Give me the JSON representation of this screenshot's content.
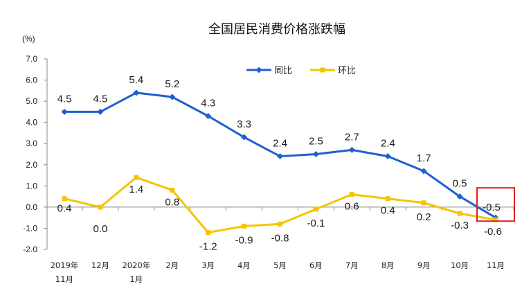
{
  "chart_data": {
    "type": "line",
    "title": "全国居民消费价格涨跌幅",
    "unit": "(%)",
    "ylim": [
      -2.0,
      7.0
    ],
    "yticks": [
      "7.0",
      "6.0",
      "5.0",
      "4.0",
      "3.0",
      "2.0",
      "1.0",
      "0.0",
      "-1.0",
      "-2.0"
    ],
    "categories": [
      [
        "2019年",
        "11月"
      ],
      [
        "12月"
      ],
      [
        "2020年",
        "1月"
      ],
      [
        "2月"
      ],
      [
        "3月"
      ],
      [
        "4月"
      ],
      [
        "5月"
      ],
      [
        "6月"
      ],
      [
        "7月"
      ],
      [
        "8月"
      ],
      [
        "9月"
      ],
      [
        "10月"
      ],
      [
        "11月"
      ]
    ],
    "series": [
      {
        "name": "同比",
        "color": "#1f5fd0",
        "values": [
          4.5,
          4.5,
          5.4,
          5.2,
          4.3,
          3.3,
          2.4,
          2.5,
          2.7,
          2.4,
          1.7,
          0.5,
          -0.5
        ],
        "labels": [
          "4.5",
          "4.5",
          "5.4",
          "5.2",
          "4.3",
          "3.3",
          "2.4",
          "2.5",
          "2.7",
          "2.4",
          "1.7",
          "0.5",
          "-0.5"
        ]
      },
      {
        "name": "环比",
        "color": "#f5c400",
        "values": [
          0.4,
          0.0,
          1.4,
          0.8,
          -1.2,
          -0.9,
          -0.8,
          -0.1,
          0.6,
          0.4,
          0.2,
          -0.3,
          -0.6
        ],
        "labels": [
          "0.4",
          "0.0",
          "1.4",
          "0.8",
          "-1.2",
          "-0.9",
          "-0.8",
          "-0.1",
          "0.6",
          "0.4",
          "0.2",
          "-0.3",
          "-0.6"
        ]
      }
    ],
    "legend": "top-center",
    "grid": false,
    "highlight": {
      "index": 12,
      "series": "同比",
      "color": "#e02020"
    }
  }
}
